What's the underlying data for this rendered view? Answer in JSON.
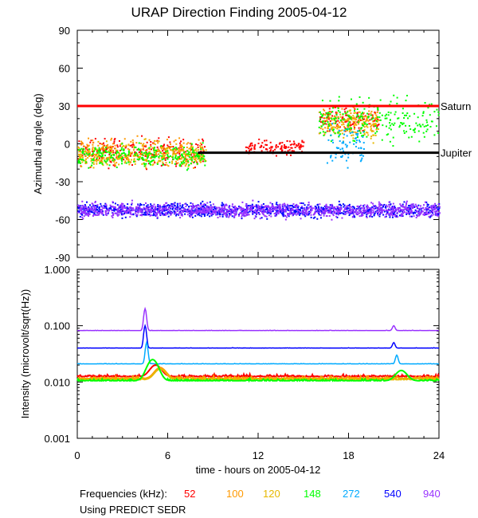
{
  "chart_data": [
    {
      "type": "scatter",
      "title": "URAP Direction Finding  2005-04-12",
      "ylabel": "Azimuthal angle (deg)",
      "xlabel": "",
      "xlim": [
        0,
        24
      ],
      "ylim": [
        -90,
        90
      ],
      "yticks": [
        90,
        60,
        30,
        0,
        -30,
        -60,
        -90
      ],
      "reference_lines": [
        {
          "name": "Saturn",
          "value": 30,
          "color": "#ff0000"
        },
        {
          "name": "Jupiter",
          "value": -7,
          "color": "#000000"
        }
      ],
      "series": [
        {
          "name": "52",
          "color": "#ff0000",
          "clusters": [
            {
              "x": [
                0,
                8.5
              ],
              "y_center": -6,
              "spread": 10
            },
            {
              "x": [
                11,
                15
              ],
              "y_center": -2,
              "spread": 5
            },
            {
              "x": [
                16,
                20
              ],
              "y_center": 20,
              "spread": 8
            }
          ]
        },
        {
          "name": "100",
          "color": "#ff9900",
          "clusters": [
            {
              "x": [
                0,
                8.5
              ],
              "y_center": -7,
              "spread": 10
            },
            {
              "x": [
                16,
                20
              ],
              "y_center": 18,
              "spread": 10
            }
          ]
        },
        {
          "name": "120",
          "color": "#e6b800",
          "clusters": [
            {
              "x": [
                0,
                8.5
              ],
              "y_center": -8,
              "spread": 9
            },
            {
              "x": [
                16.5,
                20
              ],
              "y_center": 15,
              "spread": 12
            }
          ]
        },
        {
          "name": "148",
          "color": "#00ff00",
          "clusters": [
            {
              "x": [
                0,
                8.5
              ],
              "y_center": -9,
              "spread": 8
            },
            {
              "x": [
                16,
                24
              ],
              "y_center": 20,
              "spread": 15
            }
          ]
        },
        {
          "name": "272",
          "color": "#00aaff",
          "clusters": [
            {
              "x": [
                16.5,
                19
              ],
              "y_center": 0,
              "spread": 15
            }
          ]
        },
        {
          "name": "540",
          "color": "#0000ff",
          "clusters": [
            {
              "x": [
                0,
                24
              ],
              "y_center": -52,
              "spread": 5
            }
          ]
        },
        {
          "name": "940",
          "color": "#9933ff",
          "clusters": [
            {
              "x": [
                0,
                24
              ],
              "y_center": -52,
              "spread": 5
            }
          ]
        }
      ]
    },
    {
      "type": "line",
      "title": "",
      "ylabel": "Intensity (microvolt/sqrt(Hz))",
      "xlabel": "time - hours on 2005-04-12",
      "xlim": [
        0,
        24
      ],
      "xticks": [
        0,
        6,
        12,
        18,
        24
      ],
      "ylim": [
        0.001,
        1.0
      ],
      "yscale": "log",
      "yticks": [
        1.0,
        0.1,
        0.01,
        0.001
      ],
      "ytick_labels": [
        "1.000",
        "0.100",
        "0.010",
        "0.001"
      ],
      "series": [
        {
          "name": "940",
          "color": "#9933ff",
          "baseline": 0.082,
          "peaks": [
            {
              "x": 4.5,
              "y": 0.2
            },
            {
              "x": 21,
              "y": 0.1
            }
          ]
        },
        {
          "name": "540",
          "color": "#0000ff",
          "baseline": 0.04,
          "peaks": [
            {
              "x": 4.5,
              "y": 0.1
            },
            {
              "x": 21,
              "y": 0.05
            }
          ]
        },
        {
          "name": "272",
          "color": "#00aaff",
          "baseline": 0.021,
          "peaks": [
            {
              "x": 4.6,
              "y": 0.05
            },
            {
              "x": 21.2,
              "y": 0.03
            }
          ]
        },
        {
          "name": "52",
          "color": "#ff0000",
          "baseline": 0.0125,
          "peaks": [
            {
              "x": 5.2,
              "y": 0.02
            }
          ]
        },
        {
          "name": "100",
          "color": "#ff9900",
          "baseline": 0.0115,
          "peaks": [
            {
              "x": 5.5,
              "y": 0.018
            }
          ]
        },
        {
          "name": "120",
          "color": "#e6b800",
          "baseline": 0.011,
          "peaks": [
            {
              "x": 5.5,
              "y": 0.017
            }
          ]
        },
        {
          "name": "148",
          "color": "#00ff00",
          "baseline": 0.0105,
          "peaks": [
            {
              "x": 5.0,
              "y": 0.025
            },
            {
              "x": 21.5,
              "y": 0.016
            }
          ]
        }
      ]
    }
  ],
  "legend": {
    "label": "Frequencies (kHz):",
    "items": [
      {
        "text": "52",
        "color": "#ff0000"
      },
      {
        "text": "100",
        "color": "#ff9900"
      },
      {
        "text": "120",
        "color": "#e6b800"
      },
      {
        "text": "148",
        "color": "#00ff00"
      },
      {
        "text": "272",
        "color": "#00aaff"
      },
      {
        "text": "540",
        "color": "#0000ff"
      },
      {
        "text": "940",
        "color": "#9933ff"
      }
    ]
  },
  "footer": "Using PREDICT SEDR"
}
